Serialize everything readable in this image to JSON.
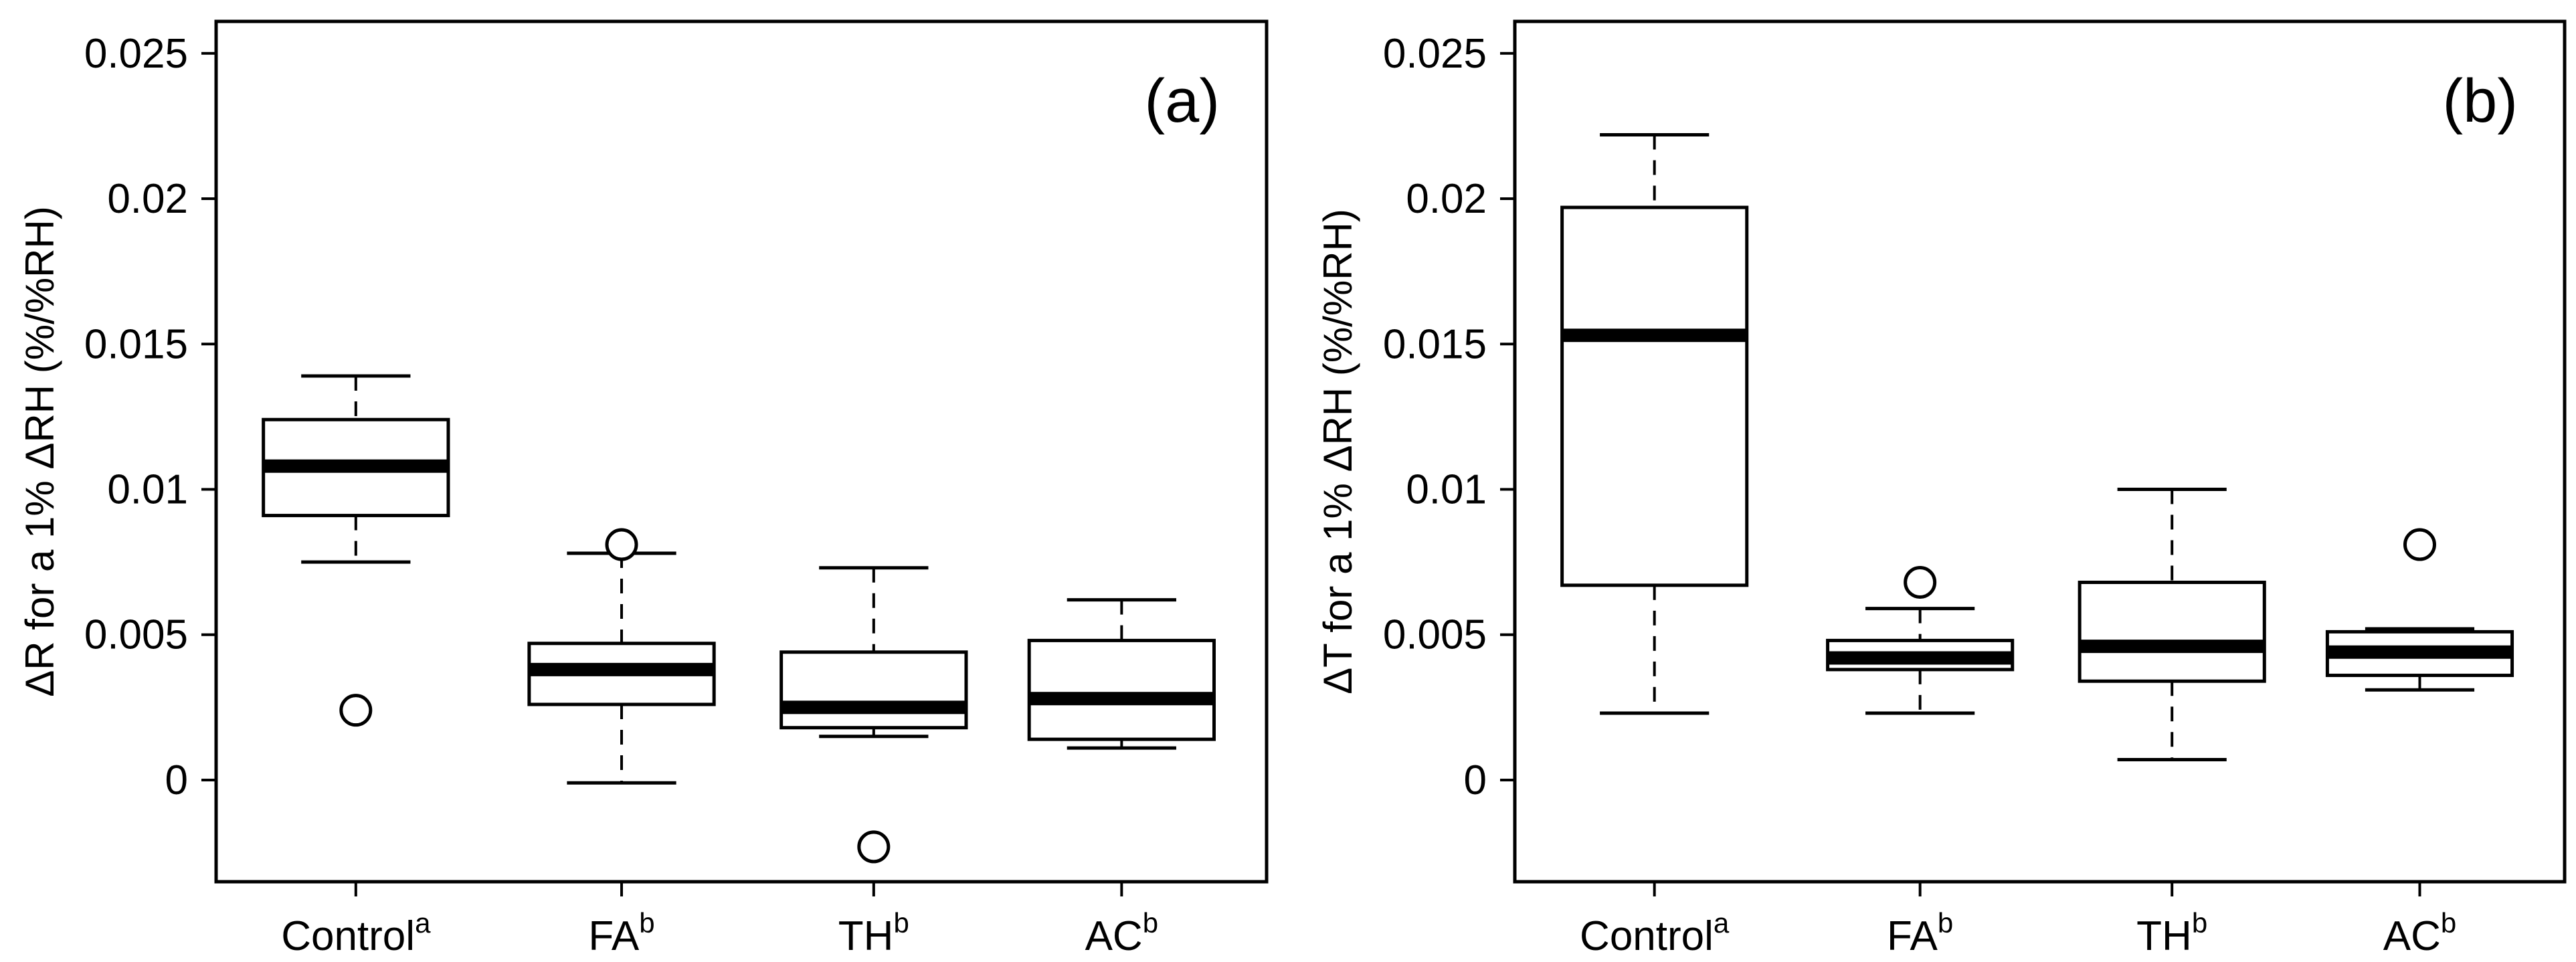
{
  "chart_data": [
    {
      "type": "boxplot",
      "panel_label": "(a)",
      "ylabel": "ΔR for a 1% ΔRH (%/%RH)",
      "ylim": [
        -0.0035,
        0.0261
      ],
      "yticks": [
        "0",
        "0.005",
        "0.01",
        "0.015",
        "0.02",
        "0.025"
      ],
      "ytick_values": [
        0,
        0.005,
        0.01,
        0.015,
        0.02,
        0.025
      ],
      "categories": [
        {
          "name": "Control",
          "sup": "a"
        },
        {
          "name": "FA",
          "sup": "b"
        },
        {
          "name": "TH",
          "sup": "b"
        },
        {
          "name": "AC",
          "sup": "b"
        }
      ],
      "boxes": [
        {
          "whisker_low": 0.0075,
          "q1": 0.0091,
          "median": 0.0108,
          "q3": 0.0124,
          "whisker_high": 0.0139,
          "outliers": [
            0.0024
          ]
        },
        {
          "whisker_low": -0.0001,
          "q1": 0.0026,
          "median": 0.0038,
          "q3": 0.0047,
          "whisker_high": 0.0078,
          "outliers": [
            0.0081
          ]
        },
        {
          "whisker_low": 0.0015,
          "q1": 0.0018,
          "median": 0.0025,
          "q3": 0.0044,
          "whisker_high": 0.0073,
          "outliers": [
            -0.0023
          ]
        },
        {
          "whisker_low": 0.0011,
          "q1": 0.0014,
          "median": 0.0028,
          "q3": 0.0048,
          "whisker_high": 0.0062,
          "outliers": []
        }
      ]
    },
    {
      "type": "boxplot",
      "panel_label": "(b)",
      "ylabel": "ΔT for a 1% ΔRH (%/%RH)",
      "ylim": [
        -0.0035,
        0.0261
      ],
      "yticks": [
        "0",
        "0.005",
        "0.01",
        "0.015",
        "0.02",
        "0.025"
      ],
      "ytick_values": [
        0,
        0.005,
        0.01,
        0.015,
        0.02,
        0.025
      ],
      "categories": [
        {
          "name": "Control",
          "sup": "a"
        },
        {
          "name": "FA",
          "sup": "b"
        },
        {
          "name": "TH",
          "sup": "b"
        },
        {
          "name": "AC",
          "sup": "b"
        }
      ],
      "boxes": [
        {
          "whisker_low": 0.0023,
          "q1": 0.0067,
          "median": 0.0153,
          "q3": 0.0197,
          "whisker_high": 0.0222,
          "outliers": []
        },
        {
          "whisker_low": 0.0023,
          "q1": 0.0038,
          "median": 0.0042,
          "q3": 0.0048,
          "whisker_high": 0.0059,
          "outliers": [
            0.0068
          ]
        },
        {
          "whisker_low": 0.0007,
          "q1": 0.0034,
          "median": 0.0046,
          "q3": 0.0068,
          "whisker_high": 0.01,
          "outliers": []
        },
        {
          "whisker_low": 0.0031,
          "q1": 0.0036,
          "median": 0.0044,
          "q3": 0.0051,
          "whisker_high": 0.0052,
          "outliers": [
            0.0081
          ]
        }
      ]
    }
  ]
}
